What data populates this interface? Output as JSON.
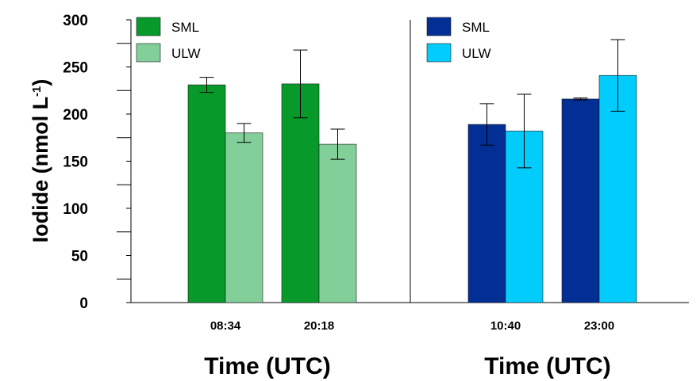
{
  "chart_data": {
    "type": "bar",
    "ylabel": "Iodide (nmol L",
    "ylabel_sup": "-1",
    "ylabel_close": ")",
    "ylim": [
      0,
      300
    ],
    "yticks": [
      0,
      50,
      100,
      150,
      200,
      250,
      300
    ],
    "panels": [
      {
        "xlabel": "Time (UTC)",
        "categories": [
          "08:34",
          "20:18"
        ],
        "series": [
          {
            "name": "SML",
            "color": "#079A2A",
            "values": [
              231,
              232
            ],
            "errors": [
              8,
              36
            ]
          },
          {
            "name": "ULW",
            "color": "#82CF9A",
            "values": [
              180,
              168
            ],
            "errors": [
              10,
              16
            ]
          }
        ]
      },
      {
        "xlabel": "Time (UTC)",
        "categories": [
          "10:40",
          "23:00"
        ],
        "series": [
          {
            "name": "SML",
            "color": "#032F95",
            "values": [
              189,
              216
            ],
            "errors": [
              22,
              1
            ]
          },
          {
            "name": "ULW",
            "color": "#02CCFB",
            "values": [
              182,
              241
            ],
            "errors": [
              39,
              38
            ]
          }
        ]
      }
    ]
  }
}
